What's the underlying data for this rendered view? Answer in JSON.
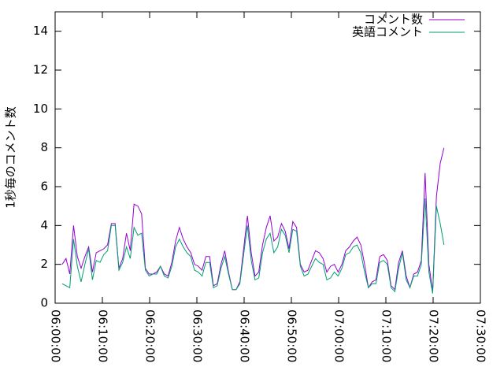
{
  "chart_data": {
    "type": "line",
    "ylabel": "1秒毎のコメント数",
    "x": [
      "06:01:30",
      "06:02:18",
      "06:03:06",
      "06:03:54",
      "06:04:42",
      "06:05:30",
      "06:06:18",
      "06:07:06",
      "06:07:54",
      "06:08:42",
      "06:09:30",
      "06:10:18",
      "06:11:06",
      "06:11:54",
      "06:12:42",
      "06:13:30",
      "06:14:18",
      "06:15:06",
      "06:15:54",
      "06:16:42",
      "06:17:30",
      "06:18:18",
      "06:19:06",
      "06:19:54",
      "06:20:42",
      "06:21:30",
      "06:22:18",
      "06:23:06",
      "06:23:54",
      "06:24:42",
      "06:25:30",
      "06:26:18",
      "06:27:06",
      "06:27:54",
      "06:28:42",
      "06:29:30",
      "06:30:18",
      "06:31:06",
      "06:31:54",
      "06:32:42",
      "06:33:30",
      "06:34:18",
      "06:35:06",
      "06:35:54",
      "06:36:42",
      "06:37:30",
      "06:38:18",
      "06:39:06",
      "06:39:54",
      "06:40:42",
      "06:41:30",
      "06:42:18",
      "06:43:06",
      "06:43:54",
      "06:44:42",
      "06:45:30",
      "06:46:18",
      "06:47:06",
      "06:47:54",
      "06:48:42",
      "06:49:30",
      "06:50:18",
      "06:51:06",
      "06:51:54",
      "06:52:42",
      "06:53:30",
      "06:54:18",
      "06:55:06",
      "06:55:54",
      "06:56:42",
      "06:57:30",
      "06:58:18",
      "06:59:06",
      "06:59:54",
      "07:00:42",
      "07:01:30",
      "07:02:18",
      "07:03:06",
      "07:03:54",
      "07:04:42",
      "07:05:30",
      "07:06:18",
      "07:07:06",
      "07:07:54",
      "07:08:42",
      "07:09:30",
      "07:10:18",
      "07:11:06",
      "07:11:54",
      "07:12:42",
      "07:13:30",
      "07:14:18",
      "07:15:06",
      "07:15:54",
      "07:16:42",
      "07:17:30",
      "07:18:18",
      "07:19:06",
      "07:19:54",
      "07:20:42",
      "07:21:30",
      "07:22:18"
    ],
    "series": [
      {
        "name": "コメント数",
        "color": "#9400d3",
        "values": [
          2.0,
          2.3,
          1.5,
          4.0,
          2.4,
          1.8,
          2.4,
          2.9,
          1.6,
          2.6,
          2.7,
          2.8,
          3.0,
          4.1,
          4.1,
          1.8,
          2.3,
          3.6,
          2.7,
          5.1,
          5.0,
          4.6,
          1.8,
          1.5,
          1.5,
          1.6,
          1.9,
          1.5,
          1.4,
          2.1,
          3.2,
          3.9,
          3.3,
          2.9,
          2.6,
          2.0,
          1.9,
          1.7,
          2.4,
          2.4,
          0.9,
          1.0,
          2.0,
          2.7,
          1.6,
          0.7,
          0.7,
          1.1,
          2.8,
          4.5,
          2.6,
          1.4,
          1.6,
          3.0,
          3.9,
          4.5,
          3.2,
          3.4,
          4.1,
          3.7,
          2.8,
          4.2,
          3.9,
          2.0,
          1.6,
          1.7,
          2.2,
          2.7,
          2.6,
          2.3,
          1.6,
          1.9,
          2.0,
          1.6,
          2.0,
          2.7,
          2.9,
          3.2,
          3.4,
          3.0,
          2.0,
          0.8,
          1.1,
          1.2,
          2.4,
          2.5,
          2.2,
          0.9,
          0.7,
          2.1,
          2.7,
          1.4,
          0.8,
          1.5,
          1.6,
          2.2,
          6.7,
          2.0,
          0.6,
          5.5,
          7.2,
          8.0
        ]
      },
      {
        "name": "英語コメント",
        "color": "#009e73",
        "values": [
          1.0,
          0.9,
          0.8,
          3.3,
          1.9,
          1.1,
          2.0,
          2.8,
          1.2,
          2.2,
          2.1,
          2.5,
          2.7,
          4.0,
          4.0,
          1.7,
          2.1,
          2.9,
          2.3,
          3.9,
          3.5,
          3.6,
          1.7,
          1.4,
          1.5,
          1.5,
          1.9,
          1.4,
          1.3,
          1.9,
          2.9,
          3.3,
          2.9,
          2.6,
          2.4,
          1.7,
          1.6,
          1.4,
          2.1,
          2.1,
          0.8,
          0.9,
          1.8,
          2.4,
          1.5,
          0.7,
          0.7,
          1.0,
          2.5,
          4.0,
          2.2,
          1.2,
          1.3,
          2.6,
          3.3,
          3.6,
          2.6,
          2.9,
          3.8,
          3.5,
          2.6,
          3.8,
          3.7,
          1.9,
          1.4,
          1.5,
          1.9,
          2.3,
          2.1,
          2.0,
          1.2,
          1.3,
          1.6,
          1.4,
          1.8,
          2.5,
          2.6,
          2.9,
          3.0,
          2.6,
          1.6,
          0.8,
          1.0,
          1.0,
          2.1,
          2.2,
          2.0,
          0.8,
          0.6,
          1.8,
          2.6,
          1.2,
          0.8,
          1.4,
          1.4,
          2.0,
          5.4,
          1.6,
          0.5,
          5.0,
          4.1,
          3.0
        ]
      }
    ],
    "xlim": [
      "06:00:00",
      "07:30:00"
    ],
    "xticks": [
      "06:00:00",
      "06:10:00",
      "06:20:00",
      "06:30:00",
      "06:40:00",
      "06:50:00",
      "07:00:00",
      "07:10:00",
      "07:20:00",
      "07:30:00"
    ],
    "ylim": [
      0,
      15
    ],
    "yticks": [
      0,
      2,
      4,
      6,
      8,
      10,
      12,
      14
    ],
    "legend": "top-right",
    "grid": false
  }
}
